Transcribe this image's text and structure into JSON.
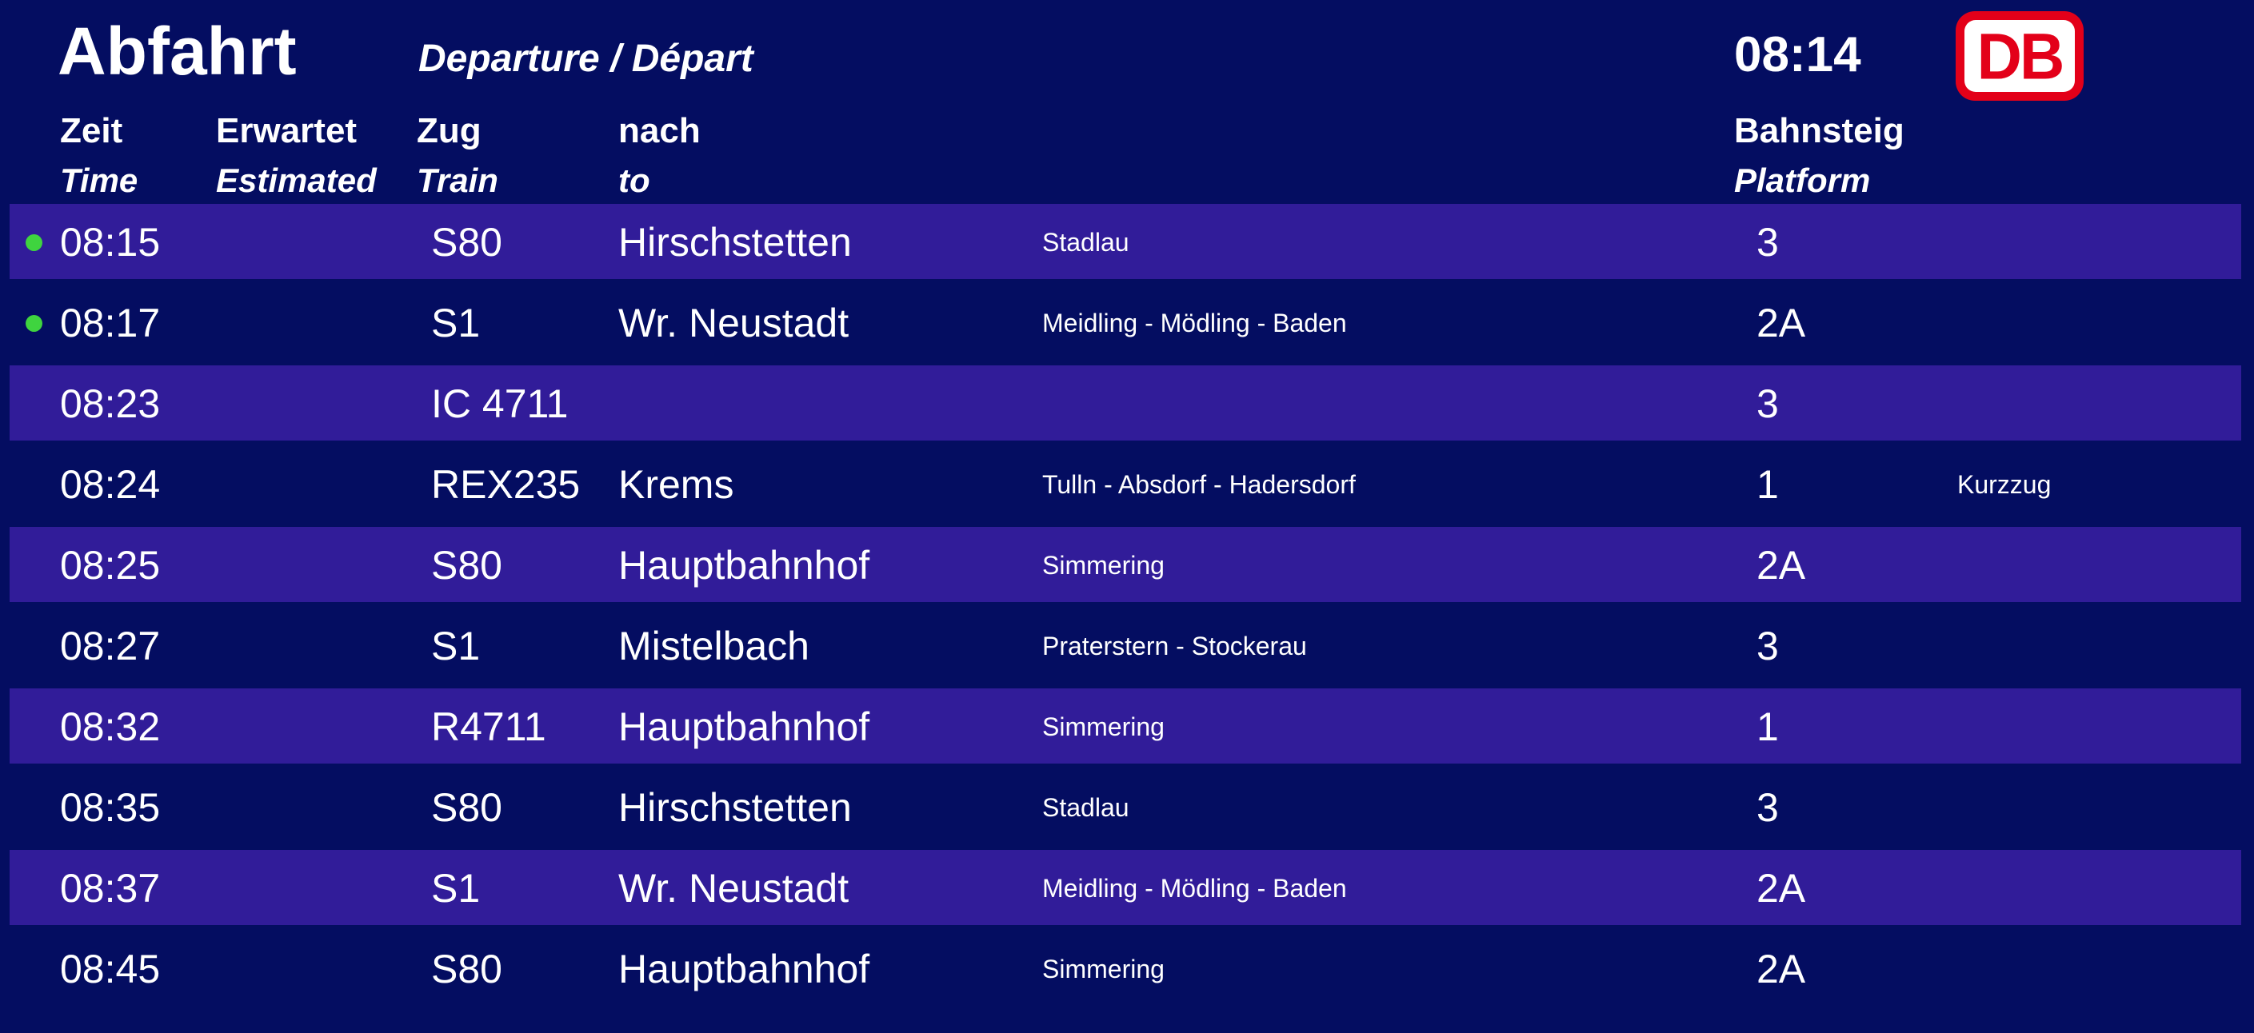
{
  "board": {
    "title": "Abfahrt",
    "subtitle": "Departure / Départ",
    "clock": "08:14",
    "logo": {
      "text": "DB"
    },
    "colors": {
      "background": "#040d61",
      "row_highlight": "#311c99",
      "text": "#ffffff",
      "status_dot": "#3fd43f",
      "logo_red": "#e30019"
    },
    "columns": [
      {
        "de": "Zeit",
        "en": "Time"
      },
      {
        "de": "Erwartet",
        "en": "Estimated"
      },
      {
        "de": "Zug",
        "en": "Train"
      },
      {
        "de": "nach",
        "en": "to"
      },
      {
        "de": "Bahnsteig",
        "en": "Platform"
      }
    ],
    "rows": [
      {
        "time": "08:15",
        "estimated": "",
        "train": "S80",
        "destination": "Hirschstetten",
        "via": "Stadlau",
        "platform": "3",
        "note": "",
        "highlighted": true,
        "dot": true
      },
      {
        "time": "08:17",
        "estimated": "",
        "train": "S1",
        "destination": "Wr. Neustadt",
        "via": "Meidling - Mödling - Baden",
        "platform": "2A",
        "note": "",
        "highlighted": false,
        "dot": true
      },
      {
        "time": "08:23",
        "estimated": "",
        "train": "IC 4711",
        "destination": "",
        "via": "",
        "platform": "3",
        "note": "",
        "highlighted": true,
        "dot": false
      },
      {
        "time": "08:24",
        "estimated": "",
        "train": "REX235",
        "destination": "Krems",
        "via": "Tulln - Absdorf - Hadersdorf",
        "platform": "1",
        "note": "Kurzzug",
        "highlighted": false,
        "dot": false
      },
      {
        "time": "08:25",
        "estimated": "",
        "train": "S80",
        "destination": "Hauptbahnhof",
        "via": "Simmering",
        "platform": "2A",
        "note": "",
        "highlighted": true,
        "dot": false
      },
      {
        "time": "08:27",
        "estimated": "",
        "train": "S1",
        "destination": "Mistelbach",
        "via": "Praterstern - Stockerau",
        "platform": "3",
        "note": "",
        "highlighted": false,
        "dot": false
      },
      {
        "time": "08:32",
        "estimated": "",
        "train": "R4711",
        "destination": "Hauptbahnhof",
        "via": "Simmering",
        "platform": "1",
        "note": "",
        "highlighted": true,
        "dot": false
      },
      {
        "time": "08:35",
        "estimated": "",
        "train": "S80",
        "destination": "Hirschstetten",
        "via": "Stadlau",
        "platform": "3",
        "note": "",
        "highlighted": false,
        "dot": false
      },
      {
        "time": "08:37",
        "estimated": "",
        "train": "S1",
        "destination": "Wr. Neustadt",
        "via": "Meidling - Mödling - Baden",
        "platform": "2A",
        "note": "",
        "highlighted": true,
        "dot": false
      },
      {
        "time": "08:45",
        "estimated": "",
        "train": "S80",
        "destination": "Hauptbahnhof",
        "via": "Simmering",
        "platform": "2A",
        "note": "",
        "highlighted": false,
        "dot": false
      }
    ]
  }
}
